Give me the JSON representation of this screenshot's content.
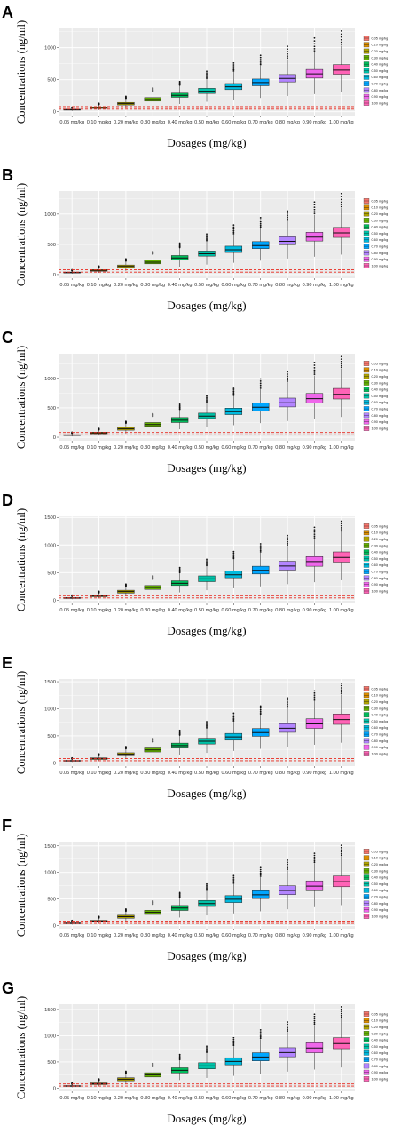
{
  "chart_data": [
    {
      "panel": "A",
      "type": "box",
      "categories": [
        "0.05 mg/kg",
        "0.10 mg/kg",
        "0.20 mg/kg",
        "0.30 mg/kg",
        "0.40 mg/kg",
        "0.50 mg/kg",
        "0.60 mg/kg",
        "0.70 mg/kg",
        "0.80 mg/kg",
        "0.90 mg/kg",
        "1.00 mg/kg"
      ],
      "medians": [
        32,
        62,
        125,
        190,
        255,
        320,
        390,
        455,
        520,
        590,
        650
      ],
      "q1": [
        25,
        50,
        105,
        165,
        225,
        285,
        345,
        405,
        465,
        525,
        585
      ],
      "q3": [
        38,
        75,
        145,
        220,
        290,
        365,
        440,
        510,
        580,
        660,
        735
      ],
      "whisker_low": [
        12,
        25,
        55,
        90,
        120,
        155,
        185,
        215,
        245,
        275,
        305
      ],
      "whisker_high": [
        55,
        110,
        205,
        310,
        410,
        510,
        620,
        720,
        820,
        930,
        1030
      ],
      "outlier_max": [
        70,
        130,
        240,
        370,
        470,
        630,
        760,
        880,
        1020,
        1150,
        1260
      ],
      "reference_lines": [
        40,
        80
      ],
      "yticks": [
        0,
        500,
        1000
      ],
      "ylim": [
        -60,
        1300
      ],
      "ylabel": "Concentrations (ng/ml)",
      "xlabel": "Dosages (mg/kg)"
    },
    {
      "panel": "B",
      "type": "box",
      "categories": [
        "0.05 mg/kg",
        "0.10 mg/kg",
        "0.20 mg/kg",
        "0.30 mg/kg",
        "0.40 mg/kg",
        "0.50 mg/kg",
        "0.60 mg/kg",
        "0.70 mg/kg",
        "0.80 mg/kg",
        "0.90 mg/kg",
        "1.00 mg/kg"
      ],
      "medians": [
        34,
        68,
        135,
        205,
        275,
        345,
        410,
        480,
        550,
        620,
        690
      ],
      "q1": [
        27,
        55,
        113,
        178,
        240,
        305,
        365,
        430,
        495,
        555,
        615
      ],
      "q3": [
        41,
        82,
        158,
        237,
        315,
        390,
        470,
        545,
        625,
        700,
        780
      ],
      "whisker_low": [
        13,
        27,
        60,
        95,
        130,
        165,
        195,
        230,
        265,
        295,
        330
      ],
      "whisker_high": [
        60,
        120,
        220,
        335,
        440,
        550,
        660,
        770,
        880,
        990,
        1100
      ],
      "outlier_max": [
        80,
        140,
        260,
        380,
        520,
        670,
        820,
        940,
        1050,
        1200,
        1340
      ],
      "reference_lines": [
        40,
        80
      ],
      "yticks": [
        0,
        500,
        1000
      ],
      "ylim": [
        -60,
        1380
      ],
      "ylabel": "Concentrations (ng/ml)",
      "xlabel": "Dosages (mg/kg)"
    },
    {
      "panel": "C",
      "type": "box",
      "categories": [
        "0.05 mg/kg",
        "0.10 mg/kg",
        "0.20 mg/kg",
        "0.30 mg/kg",
        "0.40 mg/kg",
        "0.50 mg/kg",
        "0.60 mg/kg",
        "0.70 mg/kg",
        "0.80 mg/kg",
        "0.90 mg/kg",
        "1.00 mg/kg"
      ],
      "medians": [
        36,
        72,
        145,
        215,
        290,
        360,
        435,
        510,
        585,
        655,
        730
      ],
      "q1": [
        29,
        59,
        120,
        185,
        250,
        318,
        385,
        450,
        515,
        580,
        650
      ],
      "q3": [
        44,
        87,
        170,
        250,
        335,
        410,
        495,
        580,
        665,
        745,
        830
      ],
      "whisker_low": [
        14,
        28,
        62,
        100,
        135,
        170,
        205,
        240,
        275,
        310,
        345
      ],
      "whisker_high": [
        65,
        125,
        235,
        350,
        465,
        580,
        700,
        815,
        935,
        1050,
        1170
      ],
      "outlier_max": [
        85,
        150,
        270,
        400,
        560,
        700,
        830,
        990,
        1110,
        1270,
        1370
      ],
      "reference_lines": [
        40,
        80
      ],
      "yticks": [
        0,
        500,
        1000
      ],
      "ylim": [
        -60,
        1420
      ],
      "ylabel": "Concentrations (ng/ml)",
      "xlabel": "Dosages (mg/kg)"
    },
    {
      "panel": "D",
      "type": "box",
      "categories": [
        "0.05 mg/kg",
        "0.10 mg/kg",
        "0.20 mg/kg",
        "0.30 mg/kg",
        "0.40 mg/kg",
        "0.50 mg/kg",
        "0.60 mg/kg",
        "0.70 mg/kg",
        "0.80 mg/kg",
        "0.90 mg/kg",
        "1.00 mg/kg"
      ],
      "medians": [
        38,
        75,
        155,
        230,
        305,
        385,
        460,
        540,
        620,
        700,
        775
      ],
      "q1": [
        31,
        62,
        128,
        195,
        265,
        335,
        405,
        475,
        545,
        615,
        690
      ],
      "q3": [
        46,
        90,
        180,
        265,
        350,
        440,
        525,
        615,
        705,
        790,
        875
      ],
      "whisker_low": [
        15,
        30,
        66,
        105,
        140,
        180,
        215,
        250,
        290,
        325,
        360
      ],
      "whisker_high": [
        68,
        130,
        250,
        370,
        490,
        615,
        740,
        860,
        985,
        1110,
        1230
      ],
      "outlier_max": [
        90,
        160,
        290,
        440,
        590,
        740,
        880,
        1020,
        1170,
        1320,
        1430
      ],
      "reference_lines": [
        40,
        80
      ],
      "yticks": [
        0,
        500,
        1000,
        1500
      ],
      "ylim": [
        -60,
        1520
      ],
      "ylabel": "Concentrations (ng/ml)",
      "xlabel": "Dosages (mg/kg)"
    },
    {
      "panel": "E",
      "type": "box",
      "categories": [
        "0.05 mg/kg",
        "0.10 mg/kg",
        "0.20 mg/kg",
        "0.30 mg/kg",
        "0.40 mg/kg",
        "0.50 mg/kg",
        "0.60 mg/kg",
        "0.70 mg/kg",
        "0.80 mg/kg",
        "0.90 mg/kg",
        "1.00 mg/kg"
      ],
      "medians": [
        39,
        78,
        160,
        240,
        320,
        400,
        480,
        560,
        640,
        720,
        800
      ],
      "q1": [
        32,
        64,
        133,
        202,
        275,
        348,
        420,
        492,
        565,
        638,
        712
      ],
      "q3": [
        47,
        93,
        187,
        276,
        365,
        455,
        545,
        635,
        725,
        815,
        905
      ],
      "whisker_low": [
        16,
        31,
        68,
        108,
        145,
        185,
        222,
        260,
        298,
        335,
        372
      ],
      "whisker_high": [
        70,
        135,
        258,
        382,
        505,
        635,
        760,
        885,
        1010,
        1140,
        1265
      ],
      "outlier_max": [
        92,
        165,
        300,
        450,
        600,
        760,
        920,
        1050,
        1200,
        1330,
        1470
      ],
      "reference_lines": [
        40,
        80
      ],
      "yticks": [
        0,
        500,
        1000,
        1500
      ],
      "ylim": [
        -60,
        1550
      ],
      "ylabel": "Concentrations (ng/ml)",
      "xlabel": "Dosages (mg/kg)"
    },
    {
      "panel": "F",
      "type": "box",
      "categories": [
        "0.05 mg/kg",
        "0.10 mg/kg",
        "0.20 mg/kg",
        "0.30 mg/kg",
        "0.40 mg/kg",
        "0.50 mg/kg",
        "0.60 mg/kg",
        "0.70 mg/kg",
        "0.80 mg/kg",
        "0.90 mg/kg",
        "1.00 mg/kg"
      ],
      "medians": [
        41,
        82,
        165,
        248,
        330,
        412,
        495,
        578,
        660,
        742,
        825
      ],
      "q1": [
        33,
        66,
        137,
        208,
        283,
        358,
        432,
        506,
        580,
        655,
        730
      ],
      "q3": [
        49,
        97,
        193,
        285,
        377,
        470,
        562,
        655,
        748,
        840,
        932
      ],
      "whisker_low": [
        16,
        32,
        70,
        110,
        150,
        190,
        228,
        267,
        306,
        345,
        384
      ],
      "whisker_high": [
        72,
        140,
        265,
        393,
        520,
        652,
        780,
        910,
        1040,
        1170,
        1300
      ],
      "outlier_max": [
        95,
        170,
        310,
        460,
        620,
        780,
        940,
        1090,
        1230,
        1360,
        1510
      ],
      "reference_lines": [
        40,
        80
      ],
      "yticks": [
        0,
        500,
        1000,
        1500
      ],
      "ylim": [
        -60,
        1580
      ],
      "ylabel": "Concentrations (ng/ml)",
      "xlabel": "Dosages (mg/kg)"
    },
    {
      "panel": "G",
      "type": "box",
      "categories": [
        "0.05 mg/kg",
        "0.10 mg/kg",
        "0.20 mg/kg",
        "0.30 mg/kg",
        "0.40 mg/kg",
        "0.50 mg/kg",
        "0.60 mg/kg",
        "0.70 mg/kg",
        "0.80 mg/kg",
        "0.90 mg/kg",
        "1.00 mg/kg"
      ],
      "medians": [
        42,
        85,
        170,
        255,
        340,
        425,
        510,
        595,
        680,
        765,
        850
      ],
      "q1": [
        34,
        68,
        141,
        214,
        291,
        368,
        445,
        521,
        598,
        675,
        752
      ],
      "q3": [
        50,
        100,
        199,
        294,
        389,
        485,
        580,
        675,
        771,
        866,
        962
      ],
      "whisker_low": [
        17,
        33,
        72,
        113,
        154,
        195,
        235,
        275,
        315,
        355,
        395
      ],
      "whisker_high": [
        74,
        145,
        272,
        403,
        535,
        670,
        802,
        935,
        1068,
        1202,
        1335
      ],
      "outlier_max": [
        98,
        175,
        320,
        470,
        640,
        800,
        960,
        1110,
        1260,
        1410,
        1550
      ],
      "reference_lines": [
        40,
        80
      ],
      "yticks": [
        0,
        500,
        1000,
        1500
      ],
      "ylim": [
        -60,
        1600
      ],
      "ylabel": "Concentrations (ng/ml)",
      "xlabel": "Dosages (mg/kg)"
    }
  ],
  "colors": [
    "#F8766D",
    "#DB8E00",
    "#AEA200",
    "#64B200",
    "#00BD5C",
    "#00C1A7",
    "#00BADE",
    "#00A6FF",
    "#B385FF",
    "#EF67EB",
    "#FF63B6"
  ],
  "panel_background": "#EBEBEB",
  "grid_color": "#FFFFFF",
  "reference_line_color": "#E8281E"
}
